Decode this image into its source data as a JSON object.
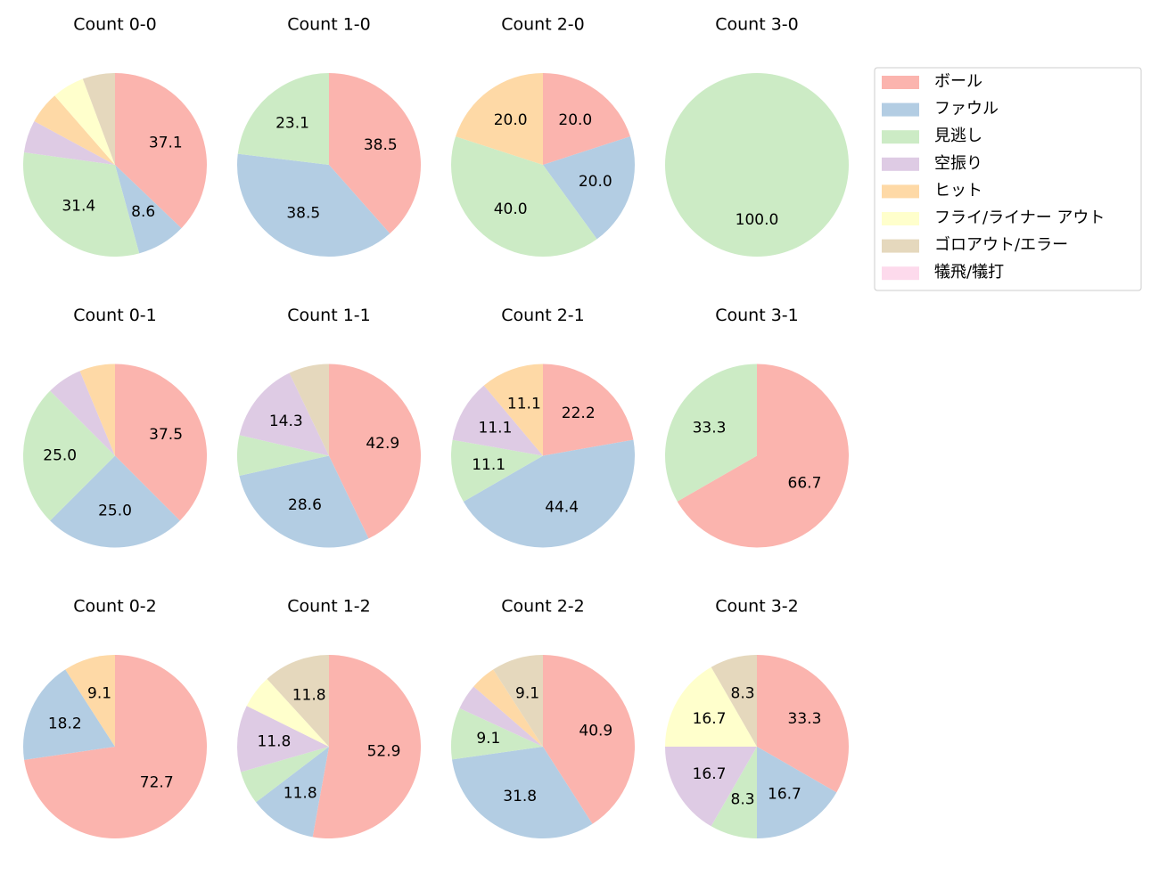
{
  "categories": [
    "ボール",
    "ファウル",
    "見逃し",
    "空振り",
    "ヒット",
    "フライ/ライナー アウト",
    "ゴロアウト/エラー",
    "犠飛/犠打"
  ],
  "colors": [
    "#fbb4ae",
    "#b3cde3",
    "#ccebc5",
    "#decbe4",
    "#fed9a6",
    "#ffffcc",
    "#e5d8bd",
    "#fddaec"
  ],
  "chart_data": [
    {
      "type": "pie",
      "title": "Count 0-0",
      "values": [
        37.1,
        8.6,
        31.4,
        5.7,
        5.7,
        5.7,
        5.7,
        0
      ],
      "value_labels": [
        "37.1",
        "8.6",
        "31.4",
        null,
        null,
        null,
        null,
        null
      ]
    },
    {
      "type": "pie",
      "title": "Count 1-0",
      "values": [
        38.5,
        38.5,
        23.1,
        0,
        0,
        0,
        0,
        0
      ],
      "value_labels": [
        "38.5",
        "38.5",
        "23.1",
        null,
        null,
        null,
        null,
        null
      ]
    },
    {
      "type": "pie",
      "title": "Count 2-0",
      "values": [
        20.0,
        20.0,
        40.0,
        0,
        20.0,
        0,
        0,
        0
      ],
      "value_labels": [
        "20.0",
        "20.0",
        "40.0",
        null,
        "20.0",
        null,
        null,
        null
      ]
    },
    {
      "type": "pie",
      "title": "Count 3-0",
      "values": [
        0,
        0,
        100.0,
        0,
        0,
        0,
        0,
        0
      ],
      "value_labels": [
        null,
        null,
        "100.0",
        null,
        null,
        null,
        null,
        null
      ]
    },
    {
      "type": "pie",
      "title": "Count 0-1",
      "values": [
        37.5,
        25.0,
        25.0,
        6.25,
        6.25,
        0,
        0,
        0
      ],
      "value_labels": [
        "37.5",
        "25.0",
        "25.0",
        null,
        null,
        null,
        null,
        null
      ]
    },
    {
      "type": "pie",
      "title": "Count 1-1",
      "values": [
        42.9,
        28.6,
        7.1,
        14.3,
        0,
        0,
        7.1,
        0
      ],
      "value_labels": [
        "42.9",
        "28.6",
        null,
        "14.3",
        null,
        null,
        null,
        null
      ]
    },
    {
      "type": "pie",
      "title": "Count 2-1",
      "values": [
        22.2,
        44.4,
        11.1,
        11.1,
        11.1,
        0,
        0,
        0
      ],
      "value_labels": [
        "22.2",
        "44.4",
        "11.1",
        "11.1",
        "11.1",
        null,
        null,
        null
      ]
    },
    {
      "type": "pie",
      "title": "Count 3-1",
      "values": [
        66.7,
        0,
        33.3,
        0,
        0,
        0,
        0,
        0
      ],
      "value_labels": [
        "66.7",
        null,
        "33.3",
        null,
        null,
        null,
        null,
        null
      ]
    },
    {
      "type": "pie",
      "title": "Count 0-2",
      "values": [
        72.7,
        18.2,
        0,
        0,
        9.1,
        0,
        0,
        0
      ],
      "value_labels": [
        "72.7",
        "18.2",
        null,
        null,
        "9.1",
        null,
        null,
        null
      ]
    },
    {
      "type": "pie",
      "title": "Count 1-2",
      "values": [
        52.9,
        11.8,
        5.9,
        11.8,
        0,
        5.9,
        11.8,
        0
      ],
      "value_labels": [
        "52.9",
        "11.8",
        null,
        "11.8",
        null,
        null,
        "11.8",
        null
      ]
    },
    {
      "type": "pie",
      "title": "Count 2-2",
      "values": [
        40.9,
        31.8,
        9.1,
        4.5,
        4.5,
        0,
        9.1,
        0
      ],
      "value_labels": [
        "40.9",
        "31.8",
        "9.1",
        null,
        null,
        null,
        "9.1",
        null
      ]
    },
    {
      "type": "pie",
      "title": "Count 3-2",
      "values": [
        33.3,
        16.7,
        8.3,
        16.7,
        0,
        16.7,
        8.3,
        0
      ],
      "value_labels": [
        "33.3",
        "16.7",
        "8.3",
        "16.7",
        null,
        "16.7",
        "8.3",
        null
      ]
    }
  ]
}
